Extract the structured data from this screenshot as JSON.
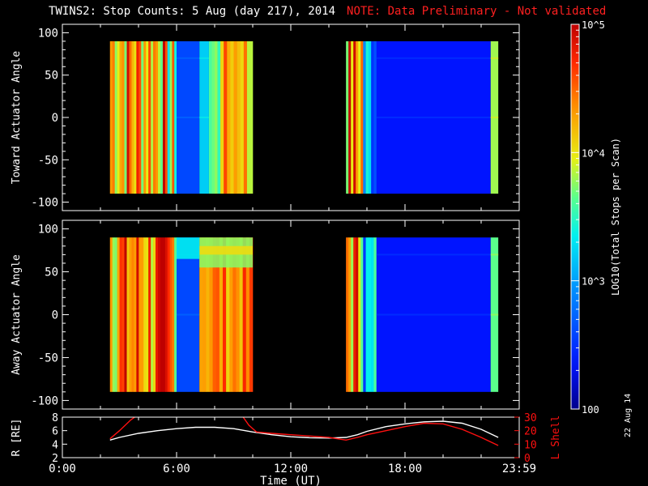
{
  "title": "TWINS2: Stop Counts:  5 Aug (day 217), 2014",
  "note": "NOTE: Data Preliminary - Not validated",
  "date_stamp": "22 Aug 14",
  "colorbar": {
    "label": "LOG10(Total Stops per Scan)",
    "ticks": [
      {
        "label": "100",
        "value": 100
      },
      {
        "label": "10^3",
        "value": 1000
      },
      {
        "label": "10^4",
        "value": 10000
      },
      {
        "label": "10^5",
        "value": 100000
      }
    ],
    "range": [
      100,
      100000
    ],
    "scale": "log"
  },
  "chart_data": [
    {
      "type": "heatmap",
      "ylabel": "Toward Actuator Angle",
      "xlim": [
        0,
        24
      ],
      "ylim": [
        -110,
        110
      ],
      "yticks": [
        -100,
        -50,
        0,
        50,
        100
      ],
      "data_yrange": [
        -90,
        90
      ],
      "blocks": [
        {
          "x": [
            2.5,
            10.0
          ],
          "bands": [
            {
              "x0": 2.5,
              "x1": 5.4,
              "level": 0.78,
              "style": "noisy"
            },
            {
              "x0": 5.4,
              "x1": 6.0,
              "level": 0.62,
              "style": "noisy"
            },
            {
              "x0": 6.0,
              "x1": 7.2,
              "level": 0.2,
              "style": "smooth"
            },
            {
              "x0": 7.2,
              "x1": 7.7,
              "level": 0.4,
              "style": "smooth"
            },
            {
              "x0": 7.7,
              "x1": 8.3,
              "level": 0.55,
              "style": "stripes"
            },
            {
              "x0": 8.3,
              "x1": 9.7,
              "level": 0.76,
              "style": "stripes"
            },
            {
              "x0": 9.7,
              "x1": 10.0,
              "level": 0.65,
              "style": "stripes"
            }
          ]
        },
        {
          "x": [
            14.9,
            22.9
          ],
          "bands": [
            {
              "x0": 14.9,
              "x1": 15.8,
              "level": 0.78,
              "style": "noisy"
            },
            {
              "x0": 15.8,
              "x1": 16.5,
              "level": 0.35,
              "style": "noisy"
            },
            {
              "x0": 16.5,
              "x1": 22.5,
              "level": 0.12,
              "style": "smooth"
            },
            {
              "x0": 22.5,
              "x1": 22.9,
              "level": 0.6,
              "style": "smooth"
            }
          ]
        }
      ]
    },
    {
      "type": "heatmap",
      "ylabel": "Away Actuator Angle",
      "xlim": [
        0,
        24
      ],
      "ylim": [
        -110,
        110
      ],
      "yticks": [
        -100,
        -50,
        0,
        50,
        100
      ],
      "data_yrange": [
        -90,
        90
      ],
      "blocks": [
        {
          "x": [
            2.5,
            10.0
          ],
          "bands": [
            {
              "x0": 2.5,
              "x1": 5.4,
              "level": 0.8,
              "style": "noisy"
            },
            {
              "x0": 5.4,
              "x1": 6.0,
              "level": 0.78,
              "style": "noisy"
            },
            {
              "x0": 6.0,
              "x1": 7.2,
              "level": 0.2,
              "style": "smooth"
            },
            {
              "x0": 7.2,
              "x1": 10.0,
              "level": 0.8,
              "style": "stripes"
            }
          ]
        },
        {
          "x": [
            14.9,
            22.9
          ],
          "bands": [
            {
              "x0": 14.9,
              "x1": 15.8,
              "level": 0.78,
              "style": "noisy"
            },
            {
              "x0": 15.8,
              "x1": 16.5,
              "level": 0.35,
              "style": "noisy"
            },
            {
              "x0": 16.5,
              "x1": 22.5,
              "level": 0.12,
              "style": "smooth"
            },
            {
              "x0": 22.5,
              "x1": 22.9,
              "level": 0.55,
              "style": "smooth"
            }
          ]
        }
      ]
    },
    {
      "type": "line",
      "ylabel": "R [RE]",
      "ylabel_right": "L Shell",
      "xlabel": "Time (UT)",
      "xlim": [
        0,
        24
      ],
      "xticks": [
        {
          "label": "0:00",
          "value": 0
        },
        {
          "label": "6:00",
          "value": 6
        },
        {
          "label": "12:00",
          "value": 12
        },
        {
          "label": "18:00",
          "value": 18
        },
        {
          "label": "23:59",
          "value": 24
        }
      ],
      "ylim": [
        2,
        8
      ],
      "yticks": [
        2,
        4,
        6,
        8
      ],
      "ylim_right": [
        0,
        30
      ],
      "yticks_right": [
        0,
        10,
        20,
        30
      ],
      "series": [
        {
          "axis": "left",
          "color": "#ffffff",
          "x": [
            2.5,
            3,
            4,
            5,
            6,
            7,
            8,
            9,
            10,
            11,
            12,
            13,
            14,
            14.9,
            15.5,
            16,
            17,
            18,
            19,
            20,
            21,
            22,
            22.9
          ],
          "y": [
            4.6,
            5.0,
            5.6,
            6.0,
            6.3,
            6.5,
            6.5,
            6.3,
            5.8,
            5.4,
            5.1,
            4.95,
            4.9,
            5.0,
            5.4,
            5.9,
            6.6,
            7.0,
            7.3,
            7.4,
            7.1,
            6.2,
            5.0
          ]
        },
        {
          "axis": "right",
          "color": "#ff1010",
          "x": [
            2.5,
            3,
            3.6,
            4.0,
            null,
            9.4,
            9.8,
            10.2,
            11,
            12,
            13,
            14,
            14.9,
            15.5,
            16,
            17,
            18,
            19,
            20,
            21,
            22,
            22.9
          ],
          "y": [
            14,
            20,
            28,
            32,
            null,
            32,
            24,
            19,
            18,
            17,
            16,
            15,
            13,
            15,
            17,
            20,
            23,
            25.5,
            25,
            21,
            15,
            9
          ]
        }
      ]
    }
  ]
}
